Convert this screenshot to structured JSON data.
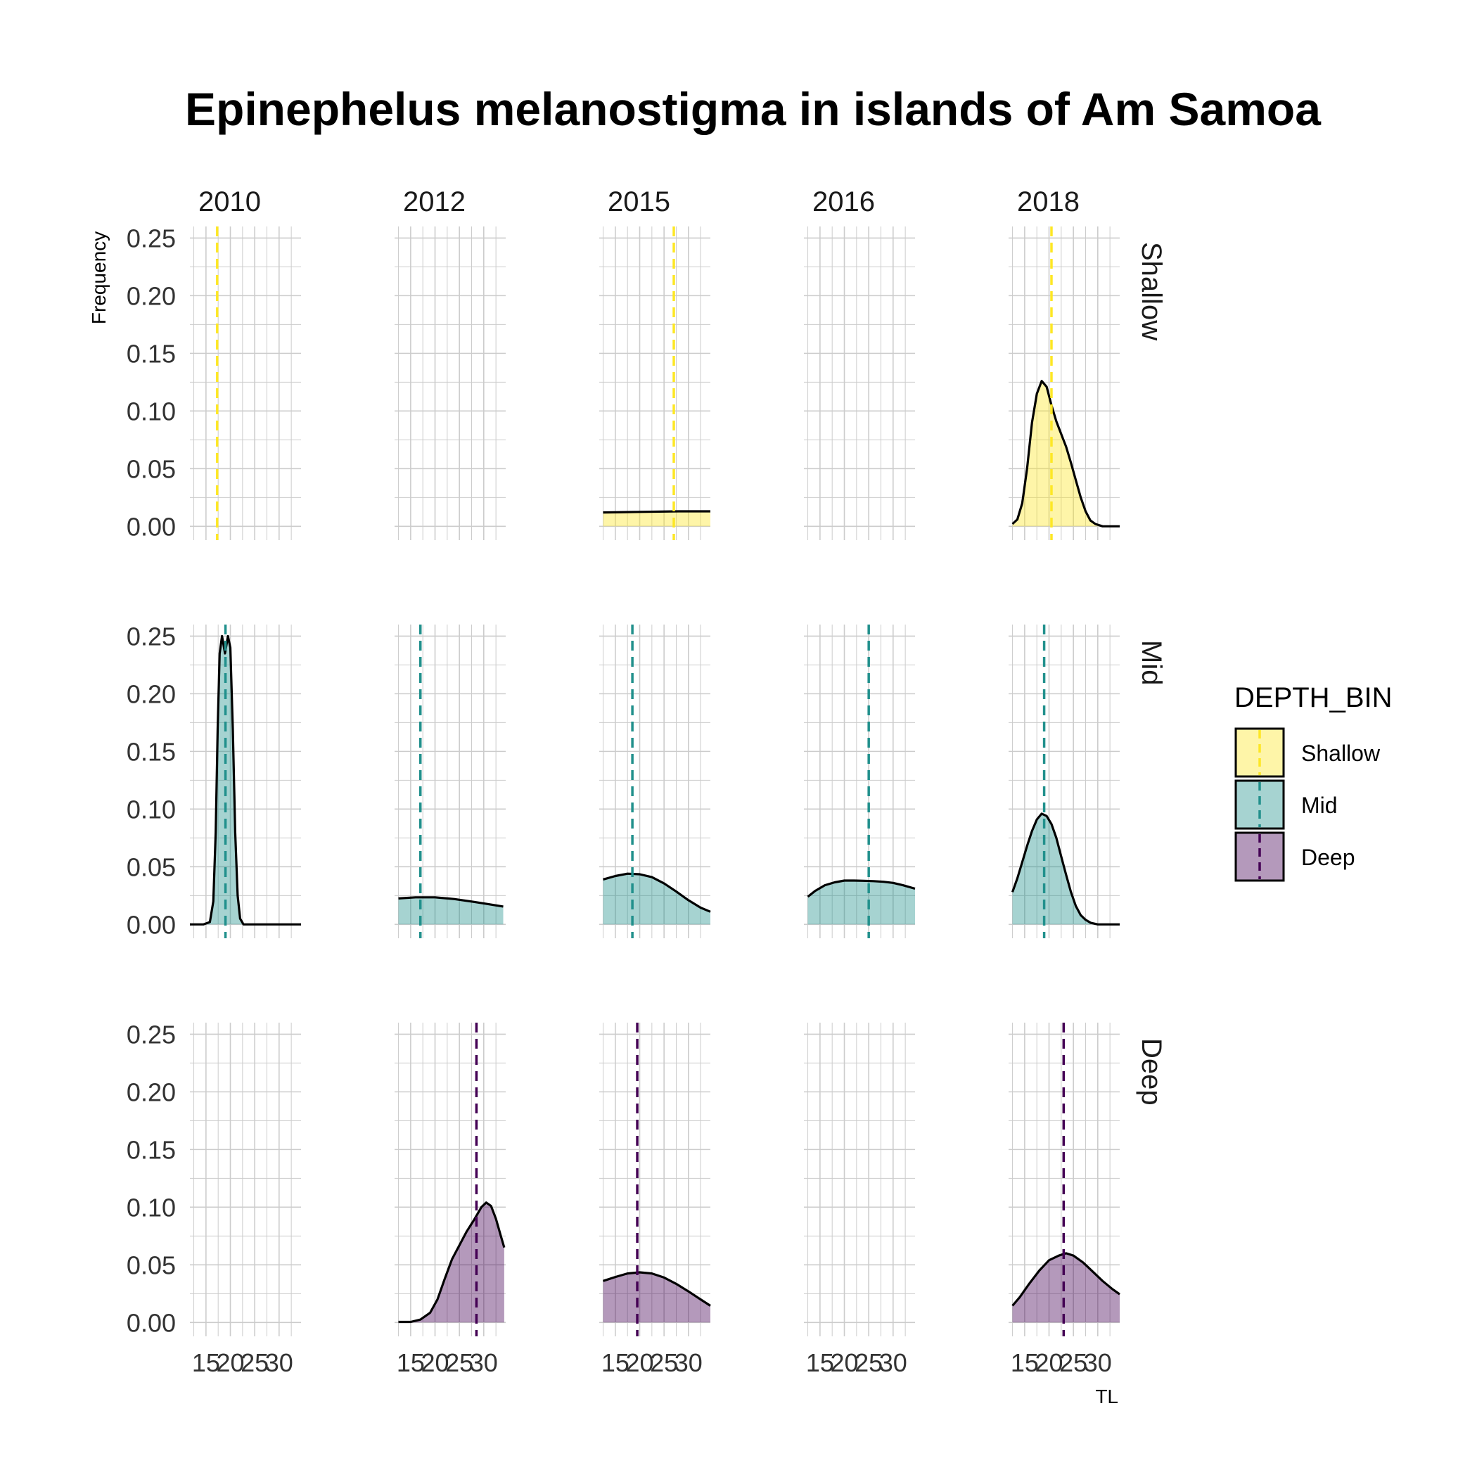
{
  "chart_data": {
    "type": "area",
    "title": "Epinephelus melanostigma in islands of Am Samoa",
    "xlabel": "TL",
    "ylabel": "Frequency",
    "columns": [
      "2010",
      "2012",
      "2015",
      "2016",
      "2018"
    ],
    "rows": [
      "Shallow",
      "Mid",
      "Deep"
    ],
    "xlim": [
      11.7,
      34.5
    ],
    "ylim": [
      -0.012,
      0.26
    ],
    "x_ticks": [
      "15",
      "20",
      "25",
      "30"
    ],
    "y_ticks": [
      "0.00",
      "0.05",
      "0.10",
      "0.15",
      "0.20",
      "0.25"
    ],
    "grid": true,
    "legend": {
      "title": "DEPTH_BIN",
      "position": "right",
      "entries": [
        "Shallow",
        "Mid",
        "Deep"
      ]
    },
    "colors": {
      "Shallow": "#fde725",
      "Mid": "#21908c",
      "Deep": "#440154",
      "grid": "#cccccc",
      "outline": "#000000"
    },
    "panels": [
      {
        "row": "Shallow",
        "col": "2010",
        "mean": 17.3,
        "density": []
      },
      {
        "row": "Shallow",
        "col": "2012",
        "density": []
      },
      {
        "row": "Shallow",
        "col": "2015",
        "mean": 27.0,
        "density": [
          [
            12.5,
            0.012
          ],
          [
            20,
            0.0125
          ],
          [
            28,
            0.013
          ],
          [
            34.5,
            0.013
          ]
        ]
      },
      {
        "row": "Shallow",
        "col": "2016",
        "density": []
      },
      {
        "row": "Shallow",
        "col": "2018",
        "mean": 20.5,
        "density": [
          [
            12.5,
            0.002
          ],
          [
            13.5,
            0.006
          ],
          [
            14.5,
            0.02
          ],
          [
            15.5,
            0.05
          ],
          [
            16.5,
            0.09
          ],
          [
            17.5,
            0.115
          ],
          [
            18.5,
            0.126
          ],
          [
            19.5,
            0.121
          ],
          [
            20.5,
            0.105
          ],
          [
            21.5,
            0.091
          ],
          [
            22.5,
            0.08
          ],
          [
            23.5,
            0.069
          ],
          [
            24.5,
            0.055
          ],
          [
            25.5,
            0.04
          ],
          [
            26.5,
            0.025
          ],
          [
            27.5,
            0.013
          ],
          [
            28.5,
            0.005
          ],
          [
            29.5,
            0.002
          ],
          [
            31,
            0
          ],
          [
            34.5,
            0
          ]
        ]
      },
      {
        "row": "Mid",
        "col": "2010",
        "mean": 19.0,
        "density": [
          [
            11.7,
            0
          ],
          [
            14.5,
            0
          ],
          [
            15.8,
            0.002
          ],
          [
            16.5,
            0.02
          ],
          [
            17.0,
            0.08
          ],
          [
            17.4,
            0.17
          ],
          [
            17.8,
            0.235
          ],
          [
            18.3,
            0.25
          ],
          [
            18.9,
            0.235
          ],
          [
            19.5,
            0.25
          ],
          [
            20.0,
            0.24
          ],
          [
            20.5,
            0.17
          ],
          [
            21.0,
            0.08
          ],
          [
            21.5,
            0.025
          ],
          [
            22.0,
            0.005
          ],
          [
            22.7,
            0
          ],
          [
            26,
            0
          ],
          [
            34.5,
            0
          ]
        ]
      },
      {
        "row": "Mid",
        "col": "2012",
        "mean": 17.0,
        "density": [
          [
            12.5,
            0.0225
          ],
          [
            16,
            0.0235
          ],
          [
            20,
            0.0235
          ],
          [
            24,
            0.022
          ],
          [
            28,
            0.0195
          ],
          [
            31,
            0.0175
          ],
          [
            34,
            0.0155
          ]
        ]
      },
      {
        "row": "Mid",
        "col": "2015",
        "mean": 18.5,
        "density": [
          [
            12.5,
            0.039
          ],
          [
            15,
            0.042
          ],
          [
            17.5,
            0.044
          ],
          [
            20,
            0.0435
          ],
          [
            22.5,
            0.041
          ],
          [
            25,
            0.0355
          ],
          [
            27.5,
            0.0285
          ],
          [
            30,
            0.021
          ],
          [
            32.5,
            0.0145
          ],
          [
            34.5,
            0.011
          ]
        ]
      },
      {
        "row": "Mid",
        "col": "2016",
        "mean": 25.0,
        "density": [
          [
            12.5,
            0.024
          ],
          [
            14,
            0.029
          ],
          [
            16,
            0.034
          ],
          [
            18,
            0.0365
          ],
          [
            20,
            0.038
          ],
          [
            22,
            0.038
          ],
          [
            24,
            0.0378
          ],
          [
            26,
            0.0375
          ],
          [
            28,
            0.037
          ],
          [
            30,
            0.036
          ],
          [
            32,
            0.034
          ],
          [
            34.5,
            0.031
          ]
        ]
      },
      {
        "row": "Mid",
        "col": "2018",
        "mean": 19.0,
        "density": [
          [
            12.5,
            0.028
          ],
          [
            13.5,
            0.04
          ],
          [
            14.5,
            0.054
          ],
          [
            15.5,
            0.068
          ],
          [
            16.5,
            0.081
          ],
          [
            17.5,
            0.091
          ],
          [
            18.5,
            0.096
          ],
          [
            19.5,
            0.094
          ],
          [
            20.5,
            0.087
          ],
          [
            21.5,
            0.075
          ],
          [
            22.5,
            0.059
          ],
          [
            23.5,
            0.043
          ],
          [
            24.5,
            0.028
          ],
          [
            25.5,
            0.016
          ],
          [
            26.5,
            0.008
          ],
          [
            27.5,
            0.004
          ],
          [
            28.5,
            0.0015
          ],
          [
            30,
            0
          ],
          [
            34.5,
            0
          ]
        ]
      },
      {
        "row": "Deep",
        "col": "2010",
        "density": []
      },
      {
        "row": "Deep",
        "col": "2012",
        "mean": 28.5,
        "density": [
          [
            12.5,
            0.0005
          ],
          [
            15,
            0.0005
          ],
          [
            17,
            0.0025
          ],
          [
            19,
            0.0085
          ],
          [
            20.5,
            0.02
          ],
          [
            22,
            0.038
          ],
          [
            23.5,
            0.055
          ],
          [
            25,
            0.067
          ],
          [
            26.5,
            0.079
          ],
          [
            28,
            0.089
          ],
          [
            29.5,
            0.1
          ],
          [
            30.5,
            0.104
          ],
          [
            31.5,
            0.101
          ],
          [
            32.5,
            0.09
          ],
          [
            33.5,
            0.075
          ],
          [
            34.2,
            0.065
          ]
        ]
      },
      {
        "row": "Deep",
        "col": "2015",
        "mean": 19.5,
        "density": [
          [
            12.5,
            0.036
          ],
          [
            15,
            0.0395
          ],
          [
            17.5,
            0.0425
          ],
          [
            20,
            0.0435
          ],
          [
            22.5,
            0.0425
          ],
          [
            25,
            0.039
          ],
          [
            27.5,
            0.0335
          ],
          [
            30,
            0.027
          ],
          [
            32.5,
            0.02
          ],
          [
            34.5,
            0.0145
          ]
        ]
      },
      {
        "row": "Deep",
        "col": "2016",
        "density": []
      },
      {
        "row": "Deep",
        "col": "2018",
        "mean": 23.0,
        "density": [
          [
            12.5,
            0.0145
          ],
          [
            14,
            0.022
          ],
          [
            16,
            0.034
          ],
          [
            18,
            0.045
          ],
          [
            20,
            0.054
          ],
          [
            22,
            0.058
          ],
          [
            23.5,
            0.06
          ],
          [
            25,
            0.058
          ],
          [
            27,
            0.052
          ],
          [
            29,
            0.044
          ],
          [
            31,
            0.036
          ],
          [
            33,
            0.029
          ],
          [
            34.5,
            0.0245
          ]
        ]
      }
    ]
  }
}
